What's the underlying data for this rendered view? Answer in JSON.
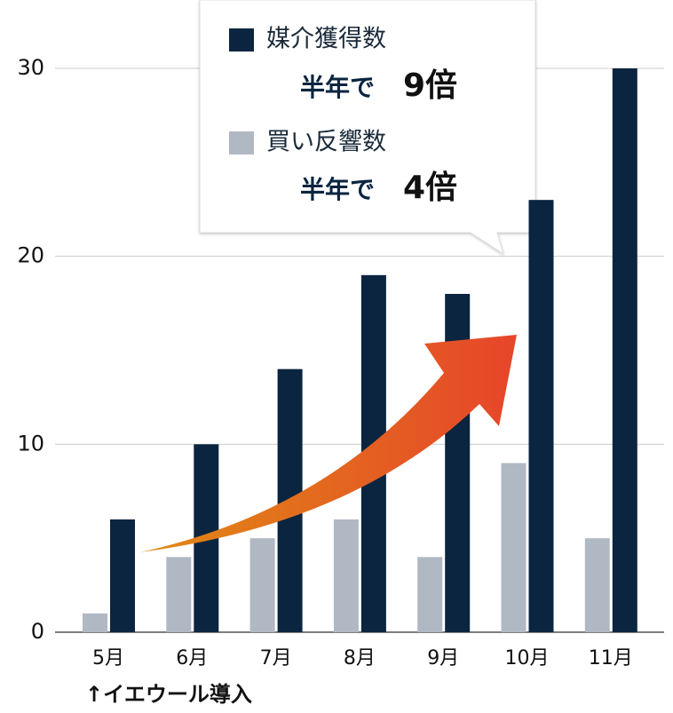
{
  "chart_data": {
    "type": "bar",
    "categories": [
      "5月",
      "6月",
      "7月",
      "8月",
      "9月",
      "10月",
      "11月"
    ],
    "series": [
      {
        "name": "媒介獲得数",
        "color": "#0b2540",
        "values": [
          6,
          10,
          14,
          19,
          18,
          23,
          30
        ]
      },
      {
        "name": "買い反響数",
        "color": "#b0b8c4",
        "values": [
          1,
          4,
          5,
          6,
          4,
          9,
          5
        ]
      }
    ],
    "ylim": [
      0,
      30
    ],
    "yticks": [
      0,
      10,
      20,
      30
    ],
    "grid": true,
    "callouts": [
      {
        "text": "半年で",
        "highlight": "9倍"
      },
      {
        "text": "半年で",
        "highlight": "4倍"
      }
    ],
    "highlight_color": "#c8321e",
    "annotation": "↑イエウール導入"
  }
}
